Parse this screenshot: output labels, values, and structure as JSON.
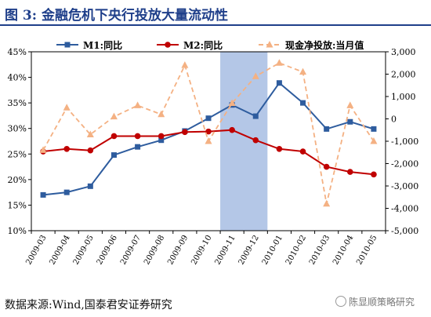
{
  "header": {
    "title": "图 3:  金融危机下央行投放大量流动性"
  },
  "footer": {
    "source": "数据来源:Wind,国泰君安证券研究",
    "watermark": "陈显顺策略研究"
  },
  "colors": {
    "m1": "#2e5c9e",
    "m2": "#c00000",
    "cash": "#f4b183",
    "highlight": "#b4c7e7",
    "title": "#1f3f8a"
  },
  "chart_data": {
    "type": "line",
    "categories": [
      "2009-03",
      "2009-04",
      "2009-05",
      "2009-06",
      "2009-07",
      "2009-08",
      "2009-09",
      "2009-10",
      "2009-11",
      "2009-12",
      "2010-01",
      "2010-02",
      "2010-03",
      "2010-04",
      "2010-05"
    ],
    "y_left": {
      "min": 10,
      "max": 45,
      "step": 5,
      "ticks": [
        "10%",
        "15%",
        "20%",
        "25%",
        "30%",
        "35%",
        "40%",
        "45%"
      ]
    },
    "y_right": {
      "min": -5000,
      "max": 3000,
      "step": 1000,
      "ticks": [
        "-5,000",
        "-4,000",
        "-3,000",
        "-2,000",
        "-1,000",
        "0",
        "1,000",
        "2,000",
        "3,000"
      ]
    },
    "highlight": {
      "from": "2009-11",
      "to": "2009-12"
    },
    "legend_position": "top",
    "series": [
      {
        "name": "M1:同比",
        "axis": "left",
        "style": "solid-square",
        "color": "#2e5c9e",
        "values": [
          17.0,
          17.5,
          18.7,
          24.8,
          26.4,
          27.7,
          29.5,
          32.0,
          34.6,
          32.4,
          38.9,
          35.0,
          29.9,
          31.3,
          29.9
        ]
      },
      {
        "name": "M2:同比",
        "axis": "left",
        "style": "solid-circle",
        "color": "#c00000",
        "values": [
          25.5,
          26.0,
          25.7,
          28.5,
          28.5,
          28.5,
          29.3,
          29.4,
          29.7,
          27.7,
          26.0,
          25.5,
          22.5,
          21.5,
          21.0
        ]
      },
      {
        "name": "现金净投放:当月值",
        "axis": "right",
        "style": "dashed-triangle",
        "color": "#f4b183",
        "values": [
          -1400,
          500,
          -700,
          100,
          600,
          200,
          2400,
          -1000,
          700,
          1900,
          2500,
          2100,
          -3800,
          600,
          -1000
        ]
      }
    ]
  }
}
